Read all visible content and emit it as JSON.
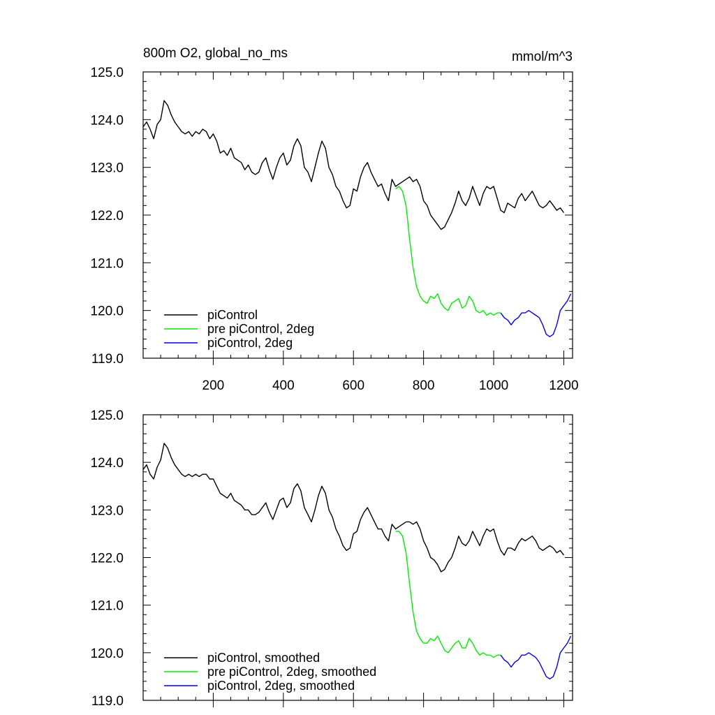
{
  "chart_data": [
    {
      "type": "line",
      "title": "800m O2, global_no_ms",
      "units": "mmol/m^3",
      "xlim": [
        0,
        1225
      ],
      "ylim": [
        119.0,
        125.0
      ],
      "x_ticks": [
        200,
        400,
        600,
        800,
        1000,
        1200
      ],
      "x_tick_labels": [
        "200",
        "400",
        "600",
        "800",
        "1000",
        "1200"
      ],
      "y_ticks": [
        119,
        120,
        121,
        122,
        123,
        124,
        125
      ],
      "y_tick_labels": [
        "119.0",
        "120.0",
        "121.0",
        "122.0",
        "123.0",
        "124.0",
        "125.0"
      ],
      "legend_position": "bottom-left",
      "series": [
        {
          "name": "piControl",
          "color": "#000000",
          "x": [
            0,
            10,
            20,
            30,
            40,
            50,
            60,
            70,
            80,
            90,
            100,
            110,
            120,
            130,
            140,
            150,
            160,
            170,
            180,
            190,
            200,
            210,
            220,
            230,
            240,
            250,
            260,
            270,
            280,
            290,
            300,
            310,
            320,
            330,
            340,
            350,
            360,
            370,
            380,
            390,
            400,
            410,
            420,
            430,
            440,
            450,
            460,
            470,
            480,
            490,
            500,
            510,
            520,
            530,
            540,
            550,
            560,
            570,
            580,
            590,
            600,
            610,
            620,
            630,
            640,
            650,
            660,
            670,
            680,
            690,
            700,
            710,
            720,
            730,
            740,
            750,
            760,
            770,
            780,
            790,
            800,
            810,
            820,
            830,
            840,
            850,
            860,
            870,
            880,
            890,
            900,
            910,
            920,
            930,
            940,
            950,
            960,
            970,
            980,
            990,
            1000,
            1010,
            1020,
            1030,
            1040,
            1050,
            1060,
            1070,
            1080,
            1090,
            1100,
            1110,
            1120,
            1130,
            1140,
            1150,
            1160,
            1170,
            1180,
            1190,
            1200
          ],
          "y": [
            123.85,
            123.95,
            123.8,
            123.6,
            123.9,
            124.0,
            124.4,
            124.3,
            124.1,
            123.95,
            123.85,
            123.75,
            123.7,
            123.75,
            123.65,
            123.75,
            123.7,
            123.8,
            123.75,
            123.6,
            123.7,
            123.55,
            123.3,
            123.35,
            123.25,
            123.4,
            123.2,
            123.15,
            123.1,
            122.95,
            123.05,
            122.9,
            122.85,
            122.9,
            123.1,
            123.2,
            122.95,
            122.75,
            123.0,
            123.2,
            123.3,
            123.05,
            123.15,
            123.45,
            123.6,
            123.45,
            123.0,
            122.9,
            122.7,
            123.0,
            123.3,
            123.55,
            123.4,
            123.0,
            122.85,
            122.6,
            122.5,
            122.3,
            122.15,
            122.2,
            122.55,
            122.5,
            122.8,
            123.0,
            123.1,
            122.9,
            122.75,
            122.6,
            122.65,
            122.45,
            122.3,
            122.75,
            122.6,
            122.65,
            122.7,
            122.75,
            122.8,
            122.7,
            122.75,
            122.6,
            122.3,
            122.2,
            122.0,
            121.9,
            121.8,
            121.7,
            121.75,
            121.9,
            122.05,
            122.25,
            122.5,
            122.3,
            122.2,
            122.35,
            122.6,
            122.4,
            122.2,
            122.45,
            122.6,
            122.55,
            122.6,
            122.35,
            122.1,
            122.05,
            122.25,
            122.2,
            122.15,
            122.35,
            122.45,
            122.3,
            122.4,
            122.5,
            122.35,
            122.2,
            122.15,
            122.2,
            122.3,
            122.2,
            122.1,
            122.15,
            122.05
          ]
        },
        {
          "name": "pre piControl, 2deg",
          "color": "#00ee00",
          "x": [
            720,
            730,
            740,
            750,
            760,
            770,
            780,
            790,
            800,
            810,
            820,
            830,
            840,
            850,
            860,
            870,
            880,
            890,
            900,
            910,
            920,
            930,
            940,
            950,
            960,
            970,
            980,
            990,
            1000,
            1010,
            1020
          ],
          "y": [
            122.55,
            122.6,
            122.5,
            122.2,
            121.5,
            120.9,
            120.5,
            120.3,
            120.2,
            120.15,
            120.3,
            120.25,
            120.35,
            120.15,
            120.05,
            120.0,
            120.15,
            120.2,
            120.25,
            120.05,
            120.1,
            120.3,
            120.2,
            120.0,
            119.95,
            120.0,
            119.9,
            119.95,
            119.9,
            119.95,
            119.95
          ]
        },
        {
          "name": "piControl, 2deg",
          "color": "#0000ee",
          "x": [
            1020,
            1030,
            1040,
            1050,
            1060,
            1070,
            1080,
            1090,
            1100,
            1110,
            1120,
            1130,
            1140,
            1150,
            1160,
            1170,
            1180,
            1190,
            1200,
            1210,
            1220
          ],
          "y": [
            119.95,
            119.85,
            119.8,
            119.7,
            119.8,
            119.85,
            119.95,
            119.95,
            120.0,
            119.95,
            119.9,
            119.85,
            119.7,
            119.5,
            119.45,
            119.5,
            119.7,
            120.0,
            120.1,
            120.2,
            120.35
          ]
        }
      ]
    },
    {
      "type": "line",
      "xlim": [
        0,
        1225
      ],
      "ylim": [
        119.0,
        125.0
      ],
      "x_ticks": [
        200,
        400,
        600,
        800,
        1000,
        1200
      ],
      "x_tick_labels": [],
      "y_ticks": [
        119,
        120,
        121,
        122,
        123,
        124,
        125
      ],
      "y_tick_labels": [
        "119.0",
        "120.0",
        "121.0",
        "122.0",
        "123.0",
        "124.0",
        "125.0"
      ],
      "legend_position": "bottom-left",
      "series": [
        {
          "name": "piControl, smoothed",
          "color": "#000000",
          "x": [
            0,
            10,
            20,
            30,
            40,
            50,
            60,
            70,
            80,
            90,
            100,
            110,
            120,
            130,
            140,
            150,
            160,
            170,
            180,
            190,
            200,
            210,
            220,
            230,
            240,
            250,
            260,
            270,
            280,
            290,
            300,
            310,
            320,
            330,
            340,
            350,
            360,
            370,
            380,
            390,
            400,
            410,
            420,
            430,
            440,
            450,
            460,
            470,
            480,
            490,
            500,
            510,
            520,
            530,
            540,
            550,
            560,
            570,
            580,
            590,
            600,
            610,
            620,
            630,
            640,
            650,
            660,
            670,
            680,
            690,
            700,
            710,
            720,
            730,
            740,
            750,
            760,
            770,
            780,
            790,
            800,
            810,
            820,
            830,
            840,
            850,
            860,
            870,
            880,
            890,
            900,
            910,
            920,
            930,
            940,
            950,
            960,
            970,
            980,
            990,
            1000,
            1010,
            1020,
            1030,
            1040,
            1050,
            1060,
            1070,
            1080,
            1090,
            1100,
            1110,
            1120,
            1130,
            1140,
            1150,
            1160,
            1170,
            1180,
            1190,
            1200
          ],
          "y": [
            123.85,
            123.95,
            123.75,
            123.65,
            123.9,
            124.05,
            124.4,
            124.3,
            124.1,
            123.95,
            123.85,
            123.75,
            123.7,
            123.75,
            123.7,
            123.75,
            123.7,
            123.75,
            123.75,
            123.65,
            123.65,
            123.5,
            123.35,
            123.3,
            123.25,
            123.35,
            123.2,
            123.15,
            123.1,
            123.0,
            123.0,
            122.9,
            122.9,
            122.95,
            123.05,
            123.15,
            122.95,
            122.8,
            123.0,
            123.2,
            123.25,
            123.05,
            123.15,
            123.45,
            123.55,
            123.4,
            123.05,
            122.9,
            122.75,
            123.0,
            123.3,
            123.5,
            123.35,
            123.0,
            122.85,
            122.6,
            122.45,
            122.25,
            122.15,
            122.2,
            122.5,
            122.55,
            122.8,
            122.95,
            123.05,
            122.9,
            122.75,
            122.6,
            122.6,
            122.45,
            122.35,
            122.7,
            122.6,
            122.65,
            122.7,
            122.75,
            122.75,
            122.7,
            122.75,
            122.6,
            122.35,
            122.2,
            122.0,
            121.95,
            121.85,
            121.7,
            121.75,
            121.9,
            122.0,
            122.2,
            122.45,
            122.3,
            122.25,
            122.35,
            122.55,
            122.4,
            122.25,
            122.45,
            122.6,
            122.55,
            122.6,
            122.35,
            122.15,
            122.05,
            122.2,
            122.2,
            122.15,
            122.3,
            122.4,
            122.35,
            122.4,
            122.45,
            122.35,
            122.2,
            122.15,
            122.2,
            122.25,
            122.2,
            122.1,
            122.15,
            122.05
          ]
        },
        {
          "name": "pre piControl, 2deg, smoothed",
          "color": "#00ee00",
          "x": [
            720,
            730,
            740,
            750,
            760,
            770,
            780,
            790,
            800,
            810,
            820,
            830,
            840,
            850,
            860,
            870,
            880,
            890,
            900,
            910,
            920,
            930,
            940,
            950,
            960,
            970,
            980,
            990,
            1000,
            1010,
            1020
          ],
          "y": [
            122.55,
            122.55,
            122.45,
            122.1,
            121.45,
            120.85,
            120.45,
            120.3,
            120.2,
            120.2,
            120.3,
            120.25,
            120.35,
            120.2,
            120.05,
            120.0,
            120.1,
            120.2,
            120.25,
            120.1,
            120.1,
            120.3,
            120.2,
            120.05,
            119.95,
            120.0,
            119.95,
            119.95,
            119.9,
            119.95,
            119.95
          ]
        },
        {
          "name": "piControl, 2deg, smoothed",
          "color": "#0000ee",
          "x": [
            1020,
            1030,
            1040,
            1050,
            1060,
            1070,
            1080,
            1090,
            1100,
            1110,
            1120,
            1130,
            1140,
            1150,
            1160,
            1170,
            1180,
            1190,
            1200,
            1210,
            1220
          ],
          "y": [
            119.95,
            119.85,
            119.8,
            119.7,
            119.8,
            119.85,
            119.95,
            119.95,
            120.0,
            119.95,
            119.9,
            119.8,
            119.65,
            119.5,
            119.45,
            119.5,
            119.7,
            120.0,
            120.1,
            120.2,
            120.35
          ]
        }
      ]
    }
  ]
}
